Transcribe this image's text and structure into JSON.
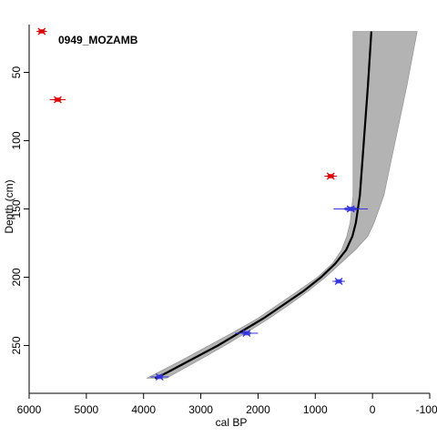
{
  "chart_data": {
    "type": "scatter",
    "title": "0949_MOZAMB",
    "xlabel": "cal BP",
    "ylabel": "Depth (cm)",
    "xlim": [
      6000,
      -1000
    ],
    "ylim": [
      15,
      285
    ],
    "x_ticks": [
      6000,
      5000,
      4000,
      3000,
      2000,
      1000,
      0,
      -1000
    ],
    "y_ticks": [
      50,
      100,
      150,
      200,
      250
    ],
    "tick_labels_x": [
      "6000",
      "5000",
      "4000",
      "3000",
      "2000",
      "1000",
      "0",
      "-1000"
    ],
    "tick_labels_y": [
      "50",
      "100",
      "150",
      "200",
      "250"
    ],
    "model": {
      "depth": [
        20,
        60,
        100,
        140,
        160,
        170,
        180,
        190,
        200,
        210,
        220,
        230,
        240,
        250,
        260,
        270,
        274
      ],
      "median": [
        20,
        80,
        150,
        220,
        290,
        350,
        460,
        650,
        900,
        1200,
        1550,
        1900,
        2300,
        2700,
        3150,
        3600,
        3800
      ],
      "lower": [
        -780,
        -600,
        -400,
        -200,
        -30,
        80,
        300,
        560,
        820,
        1120,
        1450,
        1800,
        2180,
        2580,
        3000,
        3430,
        3600
      ],
      "upper": [
        340,
        340,
        340,
        340,
        390,
        450,
        540,
        700,
        960,
        1300,
        1650,
        2000,
        2420,
        2860,
        3300,
        3760,
        3950
      ]
    },
    "dates": [
      {
        "depth": 20,
        "age": 5780,
        "err": 90,
        "color": "#dd0000"
      },
      {
        "depth": 70,
        "age": 5500,
        "err": 140,
        "color": "#dd0000"
      },
      {
        "depth": 126,
        "age": 730,
        "err": 110,
        "color": "#dd0000"
      },
      {
        "depth": 150,
        "age": 380,
        "err": 300,
        "color": "#3333dd"
      },
      {
        "depth": 203,
        "age": 590,
        "err": 110,
        "color": "#3333dd"
      },
      {
        "depth": 241,
        "age": 2200,
        "err": 200,
        "color": "#3333dd"
      },
      {
        "depth": 273,
        "age": 3720,
        "err": 160,
        "color": "#3333dd"
      }
    ],
    "colors": {
      "band": "#b3b3b3",
      "median": "#000000",
      "calibrated": "#dd0000",
      "calibrated_blue": "#3333dd"
    }
  }
}
